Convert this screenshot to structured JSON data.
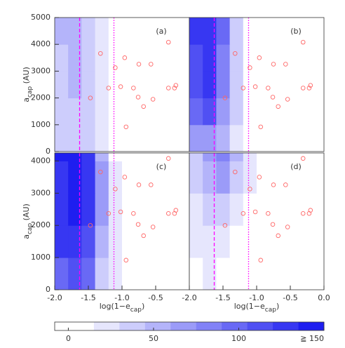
{
  "chart_data": [
    {
      "type": "contour",
      "panel_label": "(a)",
      "xlim": [
        -2,
        0
      ],
      "ylim": [
        0,
        5000
      ],
      "yticks": [
        0,
        1000,
        2000,
        3000,
        4000,
        5000
      ],
      "grid": {
        "xedges": [
          -2,
          -1.8,
          -1.6,
          -1.4,
          -1.2,
          -1.0,
          -0.8,
          -0.6,
          -0.4
        ],
        "yedges": [
          0,
          1000,
          2000,
          3000,
          4000,
          5000
        ],
        "values": [
          [
            30,
            35,
            30,
            20,
            5,
            0,
            0,
            0
          ],
          [
            35,
            40,
            35,
            25,
            8,
            2,
            0,
            0
          ],
          [
            40,
            45,
            40,
            25,
            10,
            3,
            0,
            0
          ],
          [
            40,
            45,
            35,
            25,
            8,
            3,
            0,
            0
          ],
          [
            45,
            50,
            35,
            20,
            5,
            0,
            0,
            0
          ]
        ]
      },
      "x": [
        -1.32,
        -0.96,
        -1.1,
        -1.2,
        -1.47,
        -1.02,
        -0.83,
        -0.76,
        -0.75,
        -0.57,
        -0.68,
        -0.54,
        -0.94,
        -0.31,
        -0.31,
        -0.22,
        -0.2
      ],
      "y": [
        3660,
        3500,
        3130,
        2370,
        2000,
        2420,
        2370,
        2030,
        3260,
        3260,
        1680,
        1950,
        920,
        4080,
        2370,
        2370,
        2470
      ],
      "point_color": "#ff6666",
      "vlines": [
        {
          "x": -1.63,
          "style": "dashed",
          "color": "#ff00ff"
        },
        {
          "x": -1.12,
          "style": "dotted",
          "color": "#ff00ff"
        }
      ],
      "ylabel": {
        "main": "a",
        "sub": "cap",
        "rest": " (AU)"
      }
    },
    {
      "type": "contour",
      "panel_label": "(b)",
      "xlim": [
        -2,
        0
      ],
      "ylim": [
        0,
        5000
      ],
      "grid": {
        "xedges": [
          -2,
          -1.8,
          -1.6,
          -1.4,
          -1.2,
          -1.0,
          -0.8,
          -0.6,
          -0.4
        ],
        "yedges": [
          0,
          1000,
          2000,
          3000,
          4000,
          5000
        ],
        "values": [
          [
            60,
            70,
            45,
            20,
            5,
            0,
            0,
            0
          ],
          [
            100,
            110,
            70,
            30,
            10,
            3,
            0,
            0
          ],
          [
            110,
            120,
            80,
            35,
            12,
            5,
            0,
            0
          ],
          [
            110,
            120,
            80,
            30,
            10,
            3,
            0,
            0
          ],
          [
            120,
            130,
            90,
            35,
            10,
            3,
            0,
            0
          ]
        ]
      },
      "x": [
        -1.32,
        -0.96,
        -1.1,
        -1.2,
        -1.47,
        -1.02,
        -0.83,
        -0.76,
        -0.75,
        -0.57,
        -0.68,
        -0.54,
        -0.94,
        -0.31,
        -0.31,
        -0.22,
        -0.2
      ],
      "y": [
        3660,
        3500,
        3130,
        2370,
        2000,
        2420,
        2370,
        2030,
        3260,
        3260,
        1680,
        1950,
        920,
        4080,
        2370,
        2370,
        2470
      ],
      "point_color": "#ff6666",
      "vlines": [
        {
          "x": -1.63,
          "style": "dashed",
          "color": "#ff00ff"
        },
        {
          "x": -1.12,
          "style": "dotted",
          "color": "#ff00ff"
        }
      ]
    },
    {
      "type": "contour",
      "panel_label": "(c)",
      "xlim": [
        -2,
        0
      ],
      "ylim": [
        0,
        4250
      ],
      "xticks": [
        {
          "value": -2,
          "label": "-2.0"
        },
        -1.5,
        {
          "value": -1,
          "label": "-1.0"
        },
        -0.5
      ],
      "yticks": [
        0,
        1000,
        2000,
        3000,
        4000
      ],
      "grid": {
        "xedges": [
          -2,
          -1.8,
          -1.6,
          -1.4,
          -1.2,
          -1.0,
          -0.8,
          -0.6,
          -0.4
        ],
        "yedges": [
          0,
          1000,
          2000,
          3000,
          4000,
          5000
        ],
        "values": [
          [
            100,
            110,
            90,
            40,
            15,
            5,
            0,
            0
          ],
          [
            120,
            130,
            110,
            50,
            20,
            5,
            0,
            0
          ],
          [
            130,
            140,
            120,
            60,
            20,
            5,
            0,
            0
          ],
          [
            130,
            140,
            120,
            60,
            15,
            5,
            0,
            0
          ],
          [
            140,
            150,
            130,
            50,
            10,
            3,
            0,
            0
          ]
        ]
      },
      "x": [
        -1.32,
        -0.96,
        -1.1,
        -1.2,
        -1.47,
        -1.02,
        -0.83,
        -0.76,
        -0.75,
        -0.57,
        -0.68,
        -0.54,
        -0.94,
        -0.31,
        -0.31,
        -0.22,
        -0.2
      ],
      "y": [
        3660,
        3500,
        3130,
        2370,
        2000,
        2420,
        2370,
        2030,
        3260,
        3260,
        1680,
        1950,
        920,
        4080,
        2370,
        2370,
        2470
      ],
      "point_color": "#ff6666",
      "vlines": [
        {
          "x": -1.63,
          "style": "dashed",
          "color": "#ff00ff"
        },
        {
          "x": -1.12,
          "style": "dotted",
          "color": "#ff00ff"
        }
      ],
      "xlabel": {
        "main": "log(1−e",
        "sub": "cap",
        "rest": ")"
      },
      "ylabel": {
        "main": "a",
        "sub": "cap",
        "rest": " (AU)"
      }
    },
    {
      "type": "contour",
      "panel_label": "(d)",
      "xlim": [
        -2,
        0
      ],
      "ylim": [
        0,
        4250
      ],
      "xticks": [
        {
          "value": -2,
          "label": "-2.0"
        },
        -1.5,
        {
          "value": -1,
          "label": "-1.0"
        },
        -0.5,
        {
          "value": 0,
          "label": "0.0"
        }
      ],
      "grid": {
        "xedges": [
          -2,
          -1.8,
          -1.6,
          -1.4,
          -1.2,
          -1.0,
          -0.8,
          -0.6,
          -0.4
        ],
        "yedges": [
          0,
          1000,
          2000,
          3000,
          4000,
          5000
        ],
        "values": [
          [
            10,
            15,
            10,
            5,
            0,
            0,
            0,
            0
          ],
          [
            15,
            20,
            15,
            10,
            3,
            0,
            0,
            0
          ],
          [
            20,
            30,
            30,
            20,
            8,
            2,
            0,
            0
          ],
          [
            30,
            50,
            60,
            40,
            15,
            5,
            0,
            0
          ],
          [
            40,
            70,
            80,
            50,
            15,
            3,
            0,
            0
          ]
        ]
      },
      "x": [
        -1.32,
        -0.96,
        -1.1,
        -1.2,
        -1.47,
        -1.02,
        -0.83,
        -0.76,
        -0.75,
        -0.57,
        -0.68,
        -0.54,
        -0.94,
        -0.31,
        -0.31,
        -0.22,
        -0.2
      ],
      "y": [
        3660,
        3500,
        3130,
        2370,
        2000,
        2420,
        2370,
        2030,
        3260,
        3260,
        1680,
        1950,
        920,
        4080,
        2370,
        2370,
        2470
      ],
      "point_color": "#ff6666",
      "vlines": [
        {
          "x": -1.63,
          "style": "dashed",
          "color": "#ff00ff"
        },
        {
          "x": -1.12,
          "style": "dotted",
          "color": "#ff00ff"
        }
      ],
      "xlabel": {
        "main": "log(1−e",
        "sub": "cap",
        "rest": ")"
      }
    }
  ],
  "colorbar": {
    "lim": [
      -8,
      150
    ],
    "levels": [
      0,
      15,
      30,
      45,
      60,
      75,
      90,
      105,
      120,
      135,
      150
    ],
    "ticks": [
      0,
      50,
      100,
      {
        "value": 150,
        "label": "≧ 150"
      }
    ],
    "color": "#1e1ef0"
  }
}
